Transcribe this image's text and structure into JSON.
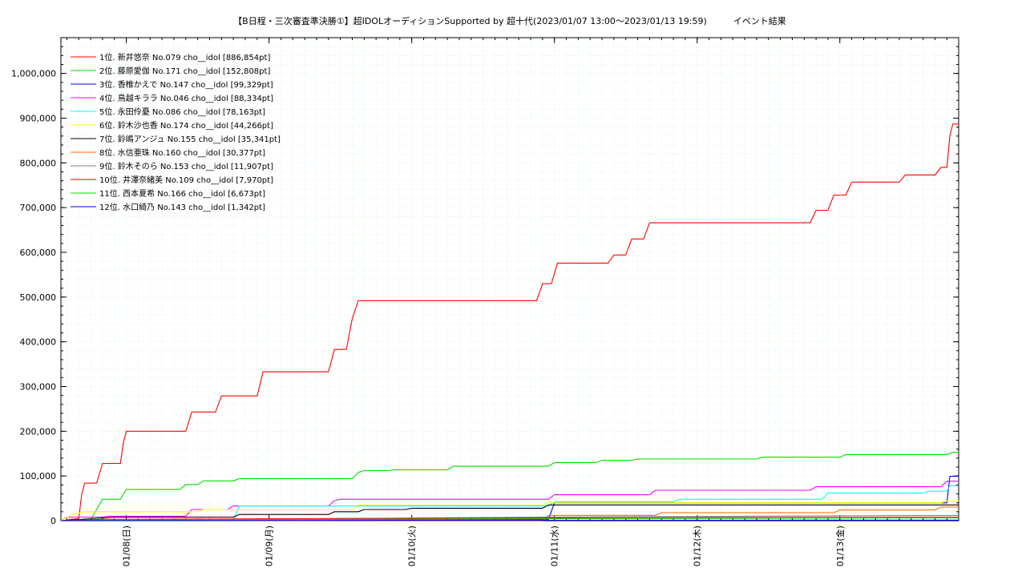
{
  "chart_data": {
    "type": "line",
    "title": "【B日程・三次審査準決勝①】超IDOLオーディションSupported by 超十代(2023/01/07 13:00～2023/01/13 19:59)　　　イベント結果",
    "xlabel": "",
    "ylabel": "",
    "ylim": [
      0,
      1080000
    ],
    "xlim": [
      "2023-01-07 13:00",
      "2023-01-13 19:59"
    ],
    "grid": true,
    "legend_position": "top-left",
    "y_ticks": [
      {
        "value": 0,
        "label": "0"
      },
      {
        "value": 100000,
        "label": "100,000"
      },
      {
        "value": 200000,
        "label": "200,000"
      },
      {
        "value": 300000,
        "label": "300,000"
      },
      {
        "value": 400000,
        "label": "400,000"
      },
      {
        "value": 500000,
        "label": "500,000"
      },
      {
        "value": 600000,
        "label": "600,000"
      },
      {
        "value": 700000,
        "label": "700,000"
      },
      {
        "value": 800000,
        "label": "800,000"
      },
      {
        "value": 900000,
        "label": "900,000"
      },
      {
        "value": 1000000,
        "label": "1,000,000"
      }
    ],
    "x_ticks": [
      {
        "value": "2023-01-08 00:00",
        "label": "01/08(日)"
      },
      {
        "value": "2023-01-09 00:00",
        "label": "01/09(月)"
      },
      {
        "value": "2023-01-10 00:00",
        "label": "01/10(火)"
      },
      {
        "value": "2023-01-11 00:00",
        "label": "01/11(水)"
      },
      {
        "value": "2023-01-12 00:00",
        "label": "01/12(木)"
      },
      {
        "value": "2023-01-13 00:00",
        "label": "01/13(金)"
      }
    ],
    "series": [
      {
        "name": "1位. 新井悠奈 No.079 cho__idol [886,854pt]",
        "color": "#ff0000",
        "points": [
          [
            "2023-01-07 13:00",
            0
          ],
          [
            "2023-01-07 16:00",
            5000
          ],
          [
            "2023-01-07 16:30",
            60000
          ],
          [
            "2023-01-07 17:00",
            84000
          ],
          [
            "2023-01-07 19:00",
            84000
          ],
          [
            "2023-01-07 20:00",
            128000
          ],
          [
            "2023-01-07 23:00",
            128000
          ],
          [
            "2023-01-07 23:30",
            175000
          ],
          [
            "2023-01-08 00:00",
            200000
          ],
          [
            "2023-01-08 10:00",
            200000
          ],
          [
            "2023-01-08 11:00",
            243000
          ],
          [
            "2023-01-08 15:00",
            243000
          ],
          [
            "2023-01-08 16:00",
            279000
          ],
          [
            "2023-01-08 22:00",
            279000
          ],
          [
            "2023-01-08 23:00",
            333000
          ],
          [
            "2023-01-09 10:00",
            333000
          ],
          [
            "2023-01-09 11:00",
            383000
          ],
          [
            "2023-01-09 13:00",
            383000
          ],
          [
            "2023-01-09 14:00",
            452000
          ],
          [
            "2023-01-09 15:00",
            492000
          ],
          [
            "2023-01-10 21:00",
            492000
          ],
          [
            "2023-01-10 22:00",
            530000
          ],
          [
            "2023-01-10 23:30",
            530000
          ],
          [
            "2023-01-11 00:30",
            576000
          ],
          [
            "2023-01-11 09:00",
            576000
          ],
          [
            "2023-01-11 10:00",
            594000
          ],
          [
            "2023-01-11 12:00",
            594000
          ],
          [
            "2023-01-11 13:00",
            630000
          ],
          [
            "2023-01-11 15:00",
            630000
          ],
          [
            "2023-01-11 16:00",
            666000
          ],
          [
            "2023-01-12 19:00",
            666000
          ],
          [
            "2023-01-12 20:00",
            694000
          ],
          [
            "2023-01-12 22:00",
            694000
          ],
          [
            "2023-01-12 23:00",
            728000
          ],
          [
            "2023-01-13 01:00",
            728000
          ],
          [
            "2023-01-13 02:00",
            757000
          ],
          [
            "2023-01-13 10:00",
            757000
          ],
          [
            "2023-01-13 11:00",
            773000
          ],
          [
            "2023-01-13 16:00",
            773000
          ],
          [
            "2023-01-13 17:00",
            790000
          ],
          [
            "2023-01-13 18:00",
            790000
          ],
          [
            "2023-01-13 18:30",
            860000
          ],
          [
            "2023-01-13 19:00",
            886854
          ],
          [
            "2023-01-13 19:59",
            886854
          ]
        ]
      },
      {
        "name": "2位. 藤原愛伽 No.171 cho__idol [152,808pt]",
        "color": "#00dd00",
        "points": [
          [
            "2023-01-07 13:00",
            0
          ],
          [
            "2023-01-07 18:00",
            2000
          ],
          [
            "2023-01-07 20:00",
            48000
          ],
          [
            "2023-01-07 23:00",
            48000
          ],
          [
            "2023-01-08 00:00",
            70000
          ],
          [
            "2023-01-08 09:00",
            70000
          ],
          [
            "2023-01-08 10:00",
            81000
          ],
          [
            "2023-01-08 12:00",
            81000
          ],
          [
            "2023-01-08 13:00",
            89000
          ],
          [
            "2023-01-08 18:00",
            89000
          ],
          [
            "2023-01-08 19:00",
            94000
          ],
          [
            "2023-01-09 14:00",
            94000
          ],
          [
            "2023-01-09 15:00",
            108000
          ],
          [
            "2023-01-09 16:00",
            112000
          ],
          [
            "2023-01-09 20:00",
            112000
          ],
          [
            "2023-01-09 21:00",
            114000
          ],
          [
            "2023-01-10 06:00",
            114000
          ],
          [
            "2023-01-10 07:00",
            122000
          ],
          [
            "2023-01-10 23:00",
            122000
          ],
          [
            "2023-01-11 00:00",
            130000
          ],
          [
            "2023-01-11 07:00",
            130000
          ],
          [
            "2023-01-11 08:00",
            135000
          ],
          [
            "2023-01-11 13:00",
            135000
          ],
          [
            "2023-01-11 14:00",
            138000
          ],
          [
            "2023-01-12 10:00",
            138000
          ],
          [
            "2023-01-12 11:00",
            142000
          ],
          [
            "2023-01-13 00:00",
            142000
          ],
          [
            "2023-01-13 01:00",
            148000
          ],
          [
            "2023-01-13 18:00",
            148000
          ],
          [
            "2023-01-13 19:00",
            152808
          ],
          [
            "2023-01-13 19:59",
            152808
          ]
        ]
      },
      {
        "name": "3位. 香椎かえで No.147 cho__idol [99,329pt]",
        "color": "#0000ff",
        "points": [
          [
            "2023-01-07 13:00",
            0
          ],
          [
            "2023-01-08 12:00",
            0
          ],
          [
            "2023-01-08 13:00",
            3000
          ],
          [
            "2023-01-10 23:00",
            3000
          ],
          [
            "2023-01-11 00:00",
            40000
          ],
          [
            "2023-01-13 18:00",
            40000
          ],
          [
            "2023-01-13 18:30",
            99329
          ],
          [
            "2023-01-13 19:59",
            99329
          ]
        ]
      },
      {
        "name": "4位. 鳥越キララ No.046 cho__idol [88,334pt]",
        "color": "#ff00ff",
        "points": [
          [
            "2023-01-07 13:00",
            0
          ],
          [
            "2023-01-07 14:00",
            8000
          ],
          [
            "2023-01-07 20:00",
            8000
          ],
          [
            "2023-01-07 21:00",
            10000
          ],
          [
            "2023-01-08 10:00",
            10000
          ],
          [
            "2023-01-08 11:00",
            25000
          ],
          [
            "2023-01-08 17:00",
            25000
          ],
          [
            "2023-01-08 18:00",
            33000
          ],
          [
            "2023-01-09 10:00",
            33000
          ],
          [
            "2023-01-09 11:00",
            45000
          ],
          [
            "2023-01-09 12:00",
            48000
          ],
          [
            "2023-01-10 23:00",
            48000
          ],
          [
            "2023-01-11 00:00",
            58000
          ],
          [
            "2023-01-11 16:00",
            58000
          ],
          [
            "2023-01-11 17:00",
            68000
          ],
          [
            "2023-01-12 19:00",
            68000
          ],
          [
            "2023-01-12 20:00",
            76000
          ],
          [
            "2023-01-13 17:00",
            76000
          ],
          [
            "2023-01-13 18:00",
            88334
          ],
          [
            "2023-01-13 19:59",
            88334
          ]
        ]
      },
      {
        "name": "5位. 永田伶憂 No.086 cho__idol [78,163pt]",
        "color": "#00ffff",
        "points": [
          [
            "2023-01-07 13:00",
            0
          ],
          [
            "2023-01-08 18:00",
            0
          ],
          [
            "2023-01-08 19:00",
            33000
          ],
          [
            "2023-01-10 23:00",
            33000
          ],
          [
            "2023-01-11 00:00",
            42000
          ],
          [
            "2023-01-11 20:00",
            42000
          ],
          [
            "2023-01-11 21:00",
            48000
          ],
          [
            "2023-01-12 21:00",
            48000
          ],
          [
            "2023-01-12 22:00",
            62000
          ],
          [
            "2023-01-13 14:00",
            62000
          ],
          [
            "2023-01-13 15:00",
            66000
          ],
          [
            "2023-01-13 18:00",
            66000
          ],
          [
            "2023-01-13 18:30",
            78163
          ],
          [
            "2023-01-13 19:59",
            78163
          ]
        ]
      },
      {
        "name": "6位. 鈴木沙也香 No.174 cho__idol [44,266pt]",
        "color": "#ffff00",
        "points": [
          [
            "2023-01-07 13:00",
            0
          ],
          [
            "2023-01-07 15:00",
            14000
          ],
          [
            "2023-01-07 17:00",
            20000
          ],
          [
            "2023-01-08 12:00",
            20000
          ],
          [
            "2023-01-08 13:00",
            25000
          ],
          [
            "2023-01-09 14:00",
            25000
          ],
          [
            "2023-01-09 15:00",
            35000
          ],
          [
            "2023-01-10 22:00",
            35000
          ],
          [
            "2023-01-10 23:00",
            40000
          ],
          [
            "2023-01-13 17:00",
            40000
          ],
          [
            "2023-01-13 18:00",
            44266
          ],
          [
            "2023-01-13 19:59",
            44266
          ]
        ]
      },
      {
        "name": "7位. 鈴嶋アンジュ No.155 cho__idol [35,341pt]",
        "color": "#000000",
        "points": [
          [
            "2023-01-07 13:00",
            0
          ],
          [
            "2023-01-07 22:00",
            8000
          ],
          [
            "2023-01-08 18:00",
            8000
          ],
          [
            "2023-01-08 19:00",
            14000
          ],
          [
            "2023-01-09 10:00",
            14000
          ],
          [
            "2023-01-09 11:00",
            20000
          ],
          [
            "2023-01-09 15:00",
            20000
          ],
          [
            "2023-01-09 16:00",
            25000
          ],
          [
            "2023-01-09 23:00",
            25000
          ],
          [
            "2023-01-10 00:00",
            28000
          ],
          [
            "2023-01-10 22:00",
            28000
          ],
          [
            "2023-01-10 23:00",
            35341
          ],
          [
            "2023-01-13 19:59",
            35341
          ]
        ]
      },
      {
        "name": "8位. 水信亜珠 No.160 cho__idol [30,377pt]",
        "color": "#ff6600",
        "points": [
          [
            "2023-01-07 13:00",
            0
          ],
          [
            "2023-01-10 22:00",
            0
          ],
          [
            "2023-01-10 23:00",
            12000
          ],
          [
            "2023-01-11 17:00",
            12000
          ],
          [
            "2023-01-11 18:00",
            18000
          ],
          [
            "2023-01-12 23:00",
            18000
          ],
          [
            "2023-01-13 00:00",
            24000
          ],
          [
            "2023-01-13 16:00",
            24000
          ],
          [
            "2023-01-13 17:00",
            30377
          ],
          [
            "2023-01-13 19:59",
            30377
          ]
        ]
      },
      {
        "name": "9位. 鈴木そのら No.153 cho__idol [11,907pt]",
        "color": "#808080",
        "points": [
          [
            "2023-01-07 13:00",
            0
          ],
          [
            "2023-01-08 12:00",
            2000
          ],
          [
            "2023-01-10 00:00",
            6000
          ],
          [
            "2023-01-11 10:00",
            9000
          ],
          [
            "2023-01-13 19:59",
            11907
          ]
        ]
      },
      {
        "name": "10位. 井澤奈緒美 No.109 cho__idol [7,970pt]",
        "color": "#ff0000",
        "points": [
          [
            "2023-01-07 13:00",
            0
          ],
          [
            "2023-01-07 20:00",
            3000
          ],
          [
            "2023-01-09 15:00",
            5000
          ],
          [
            "2023-01-11 00:00",
            6500
          ],
          [
            "2023-01-13 19:59",
            7970
          ]
        ]
      },
      {
        "name": "11位. 西本夏希 No.166 cho__idol [6,673pt]",
        "color": "#00dd00",
        "points": [
          [
            "2023-01-07 13:00",
            0
          ],
          [
            "2023-01-08 10:00",
            2000
          ],
          [
            "2023-01-10 10:00",
            4000
          ],
          [
            "2023-01-12 10:00",
            5500
          ],
          [
            "2023-01-13 19:59",
            6673
          ]
        ]
      },
      {
        "name": "12位. 水口綺乃 No.143 cho__idol [1,342pt]",
        "color": "#0000ff",
        "points": [
          [
            "2023-01-07 13:00",
            0
          ],
          [
            "2023-01-09 00:00",
            500
          ],
          [
            "2023-01-12 00:00",
            1000
          ],
          [
            "2023-01-13 19:59",
            1342
          ]
        ]
      }
    ]
  }
}
